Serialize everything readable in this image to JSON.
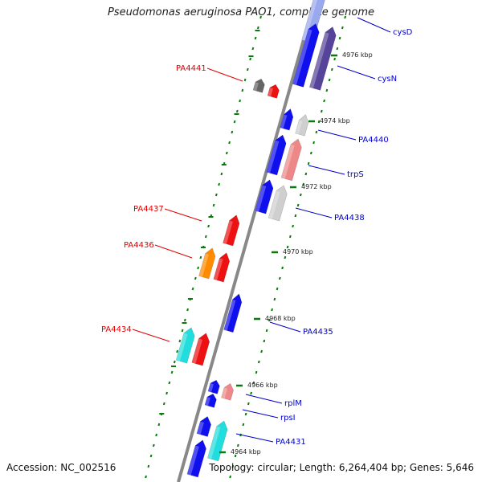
{
  "title": "Pseudomonas aeruginosa PAO1, complete genome",
  "footer": {
    "accession": "Accession: NC_002516",
    "summary": "Topology: circular; Length: 6,264,404 bp; Genes: 5,646"
  },
  "colors": {
    "blue": "#1010ee",
    "dark_blue": "#55449a",
    "light_blue": "#9aa8ee",
    "red": "#ee1111",
    "pink": "#ee8888",
    "gray": "#cfcfcf",
    "dark_gray": "#666666",
    "orange": "#ff8c00",
    "cyan": "#22dddd",
    "axis": "#888888",
    "tick": "#0a7a0a",
    "left_label": "#e00000",
    "right_label": "#0000cc"
  },
  "kbp_marks": [
    "4976 kbp",
    "4974 kbp",
    "4972 kbp",
    "4970 kbp",
    "4968 kbp",
    "4966 kbp",
    "4964 kbp"
  ],
  "left_labels": [
    "PA4441",
    "PA4437",
    "PA4436",
    "PA4434"
  ],
  "right_labels": [
    "cysD",
    "cysN",
    "PA4440",
    "trpS",
    "PA4438",
    "PA4435",
    "rplM",
    "rpsI",
    "PA4431"
  ]
}
